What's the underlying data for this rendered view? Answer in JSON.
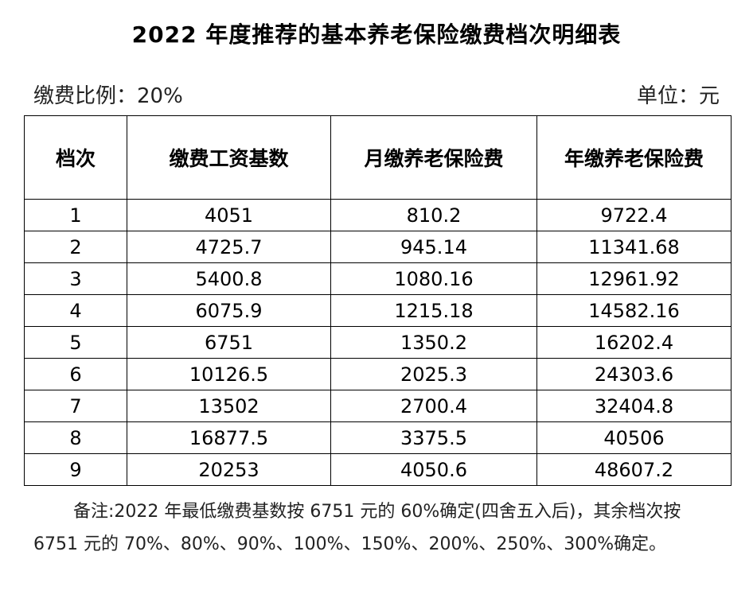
{
  "title": "2022 年度推荐的基本养老保险缴费档次明细表",
  "rate_label": "缴费比例：20%",
  "unit_label": "单位：元",
  "headers": [
    "档次",
    "缴费工资基数",
    "月缴养老保险费",
    "年缴养老保险费"
  ],
  "rows": [
    [
      "1",
      "4051",
      "810.2",
      "9722.4"
    ],
    [
      "2",
      "4725.7",
      "945.14",
      "11341.68"
    ],
    [
      "3",
      "5400.8",
      "1080.16",
      "12961.92"
    ],
    [
      "4",
      "6075.9",
      "1215.18",
      "14582.16"
    ],
    [
      "5",
      "6751",
      "1350.2",
      "16202.4"
    ],
    [
      "6",
      "10126.5",
      "2025.3",
      "24303.6"
    ],
    [
      "7",
      "13502",
      "2700.4",
      "32404.8"
    ],
    [
      "8",
      "16877.5",
      "3375.5",
      "40506"
    ],
    [
      "9",
      "20253",
      "4050.6",
      "48607.2"
    ]
  ],
  "note": "备注:2022 年最低缴费基数按 6751 元的 60%确定(四舍五入后)，其余档次按 6751 元的 70%、80%、90%、100%、150%、200%、250%、300%确定。"
}
